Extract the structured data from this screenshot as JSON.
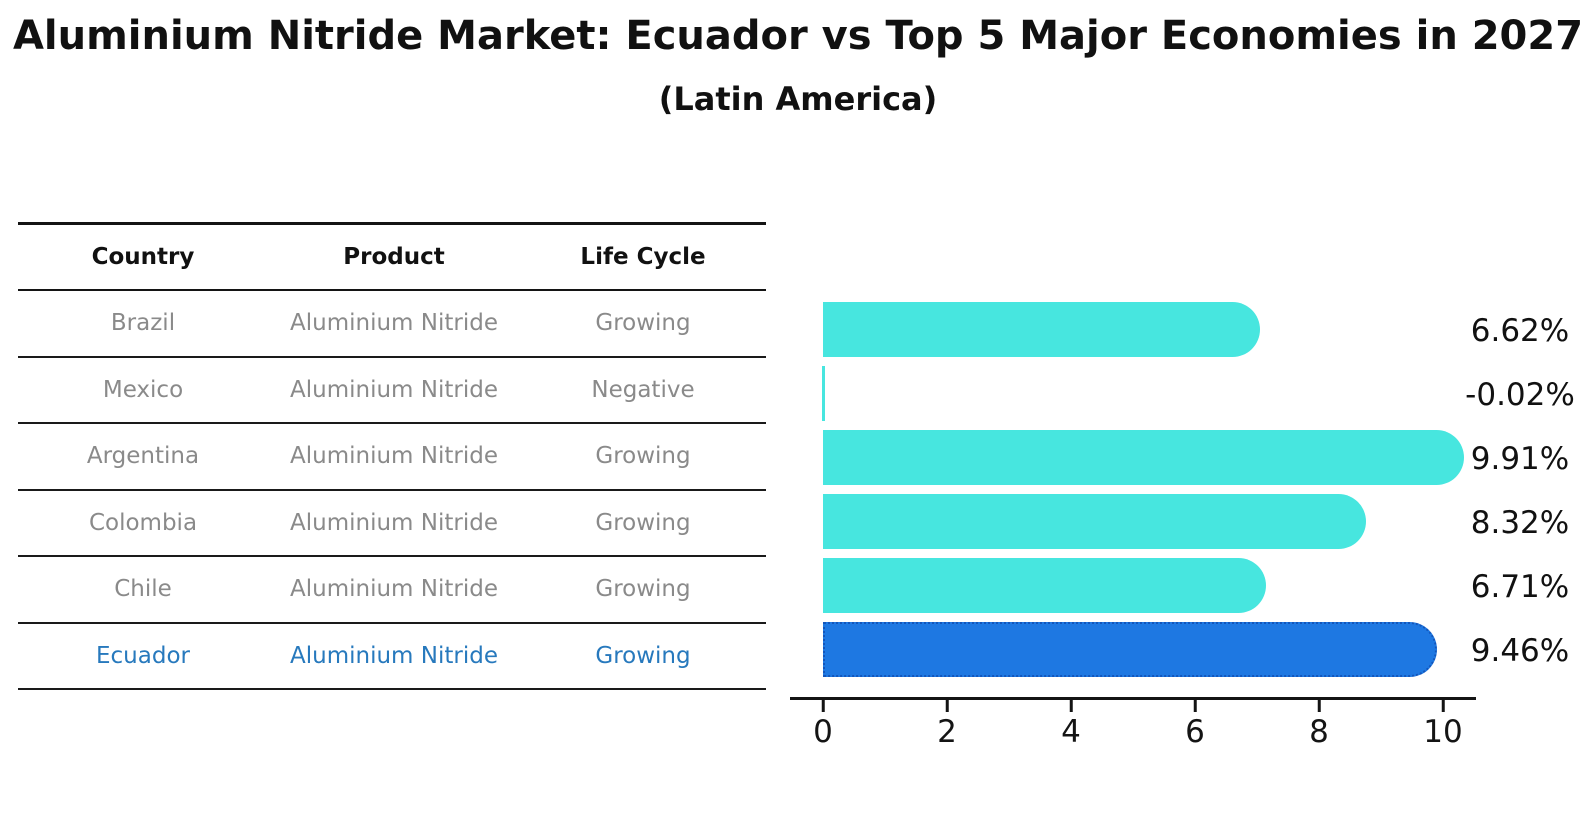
{
  "title": "Aluminium Nitride Market: Ecuador vs Top 5 Major Economies in 2027",
  "subtitle": "(Latin America)",
  "table": {
    "headers": [
      "Country",
      "Product",
      "Life Cycle"
    ],
    "rows": [
      {
        "country": "Brazil",
        "product": "Aluminium Nitride",
        "life_cycle": "Growing",
        "highlight": false
      },
      {
        "country": "Mexico",
        "product": "Aluminium Nitride",
        "life_cycle": "Negative",
        "highlight": false
      },
      {
        "country": "Argentina",
        "product": "Aluminium Nitride",
        "life_cycle": "Growing",
        "highlight": false
      },
      {
        "country": "Colombia",
        "product": "Aluminium Nitride",
        "life_cycle": "Growing",
        "highlight": false
      },
      {
        "country": "Chile",
        "product": "Aluminium Nitride",
        "life_cycle": "Growing",
        "highlight": false
      },
      {
        "country": "Ecuador",
        "product": "Aluminium Nitride",
        "life_cycle": "Growing",
        "highlight": true
      }
    ]
  },
  "chart_data": {
    "type": "bar",
    "orientation": "horizontal",
    "title": "Aluminium Nitride Market: Ecuador vs Top 5 Major Economies in 2027",
    "subtitle": "(Latin America)",
    "categories": [
      "Brazil",
      "Mexico",
      "Argentina",
      "Colombia",
      "Chile",
      "Ecuador"
    ],
    "values": [
      6.62,
      -0.02,
      9.91,
      8.32,
      6.71,
      9.46
    ],
    "value_labels": [
      "6.62%",
      "-0.02%",
      "9.91%",
      "8.32%",
      "6.71%",
      "9.46%"
    ],
    "highlight_category": "Ecuador",
    "highlight_index": 5,
    "xticks": [
      0,
      2,
      4,
      6,
      8,
      10
    ],
    "xlim": [
      -0.5,
      10.5
    ],
    "xlabel": "",
    "ylabel": "",
    "grid": false,
    "legend": false
  },
  "colors": {
    "bar": "#47e6df",
    "highlight_bar": "#1e78e2",
    "highlight_border": "#1356bb",
    "highlight_text": "#2779bd",
    "table_text": "#8a8a8a",
    "axis": "#141414",
    "title_text": "#111111"
  }
}
